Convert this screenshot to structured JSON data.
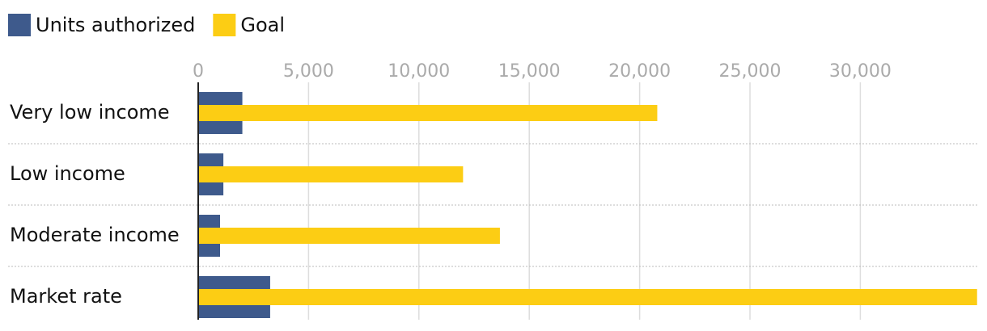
{
  "chart_data": {
    "type": "bar",
    "orientation": "horizontal",
    "categories": [
      "Very low income",
      "Low income",
      "Moderate income",
      "Market rate"
    ],
    "series": [
      {
        "name": "Units authorized",
        "color": "#3e5a8c",
        "values": [
          2000,
          1140,
          990,
          3260
        ]
      },
      {
        "name": "Goal",
        "color": "#fccd14",
        "values": [
          20800,
          12000,
          13670,
          35290
        ]
      }
    ],
    "xlim": [
      0,
      35300
    ],
    "xticks": [
      0,
      {
        "value": 5000,
        "label": "5,000"
      },
      {
        "value": 10000,
        "label": "10,000"
      },
      {
        "value": 15000,
        "label": "15,000"
      },
      {
        "value": 20000,
        "label": "20,000"
      },
      {
        "value": 25000,
        "label": "25,000"
      },
      {
        "value": 30000,
        "label": "30,000"
      }
    ],
    "grid": true,
    "legend": "top-left"
  }
}
